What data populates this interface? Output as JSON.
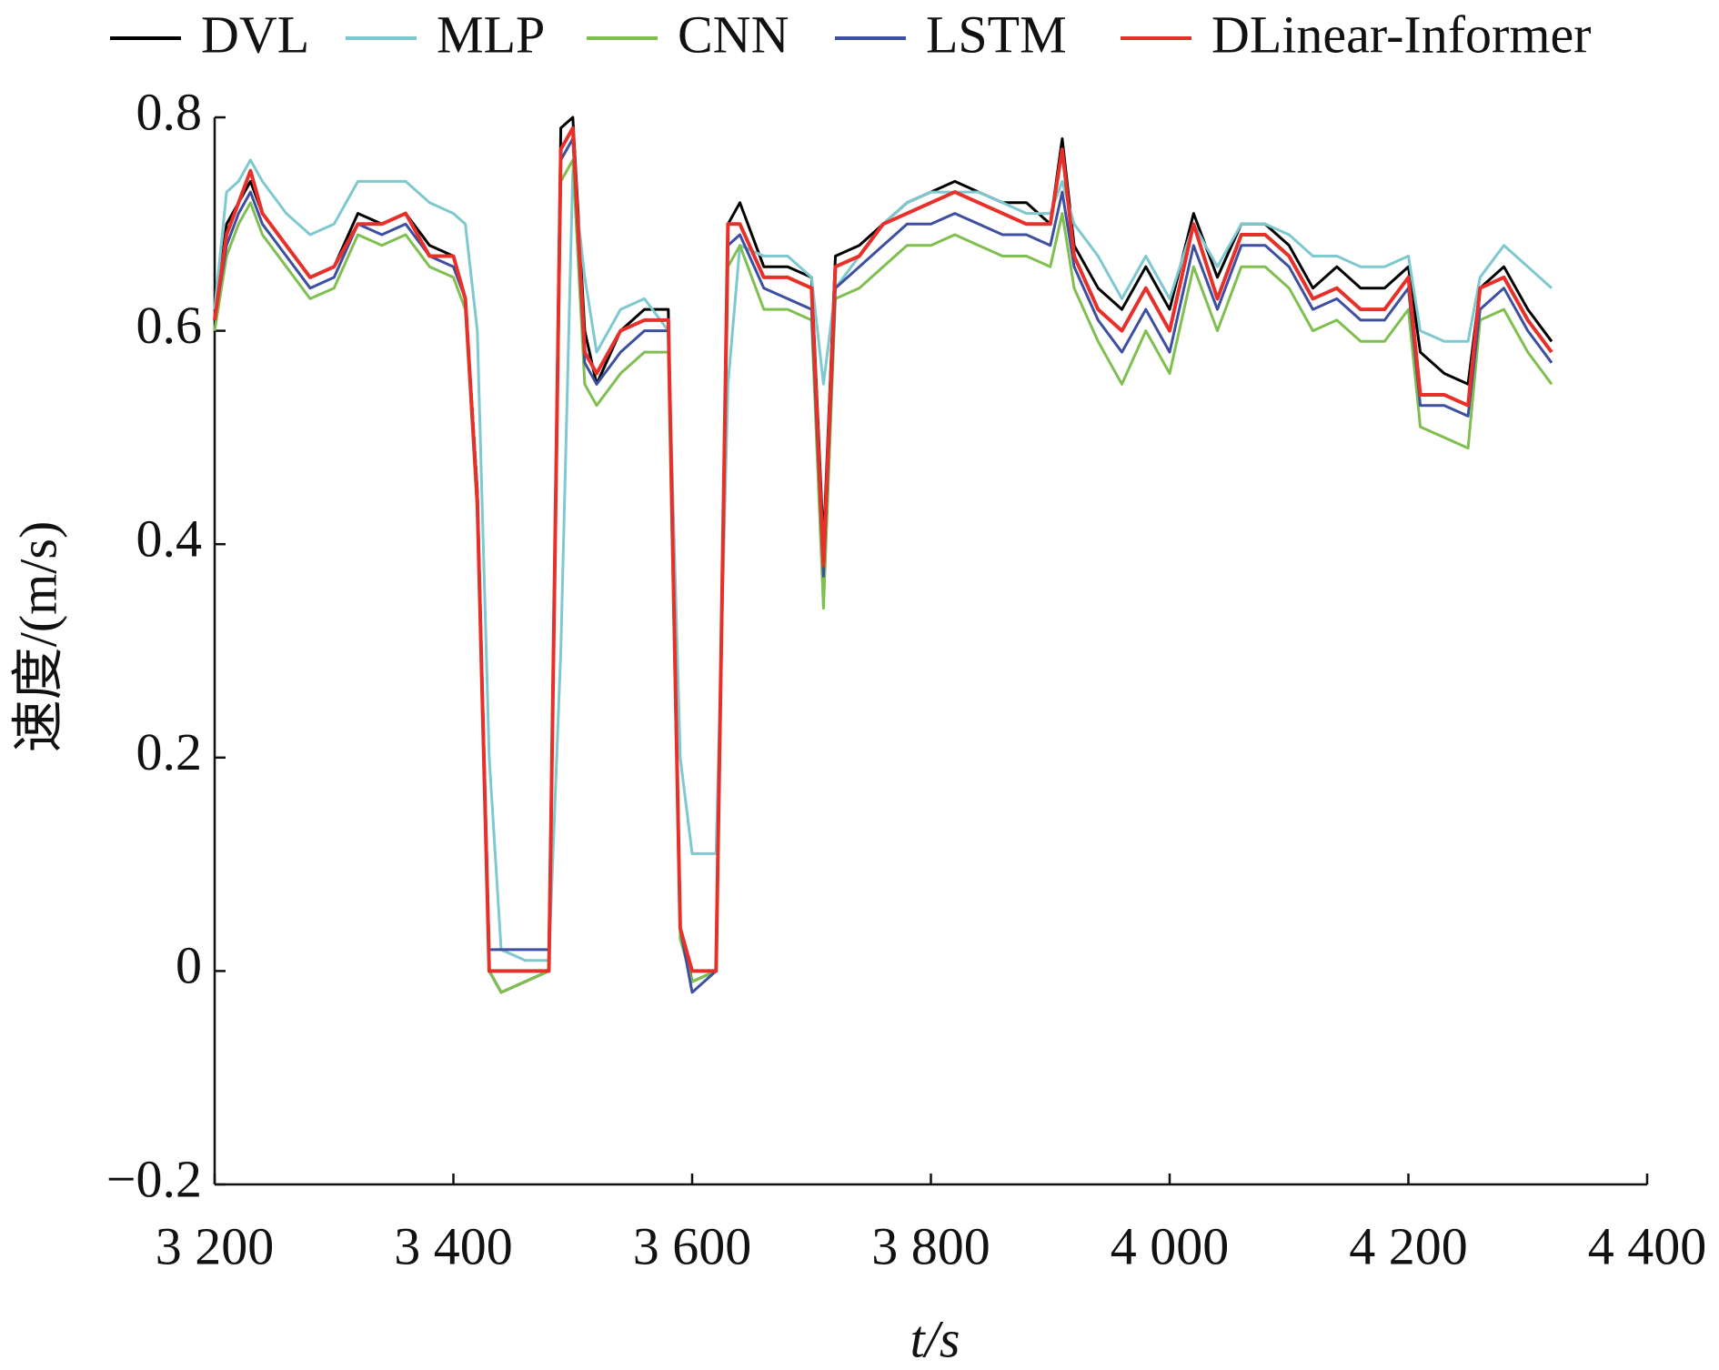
{
  "chart_data": {
    "type": "line",
    "xlabel": "t/s",
    "ylabel": "速度/(m/s)",
    "x": [
      3200,
      3210,
      3220,
      3230,
      3240,
      3260,
      3280,
      3300,
      3320,
      3340,
      3360,
      3380,
      3400,
      3410,
      3420,
      3430,
      3440,
      3460,
      3480,
      3490,
      3500,
      3510,
      3520,
      3540,
      3560,
      3580,
      3590,
      3600,
      3620,
      3630,
      3640,
      3660,
      3680,
      3700,
      3710,
      3720,
      3740,
      3760,
      3780,
      3800,
      3820,
      3840,
      3860,
      3880,
      3900,
      3910,
      3920,
      3940,
      3960,
      3980,
      4000,
      4020,
      4040,
      4060,
      4080,
      4100,
      4120,
      4140,
      4160,
      4180,
      4200,
      4210,
      4230,
      4250,
      4260,
      4280,
      4300,
      4320
    ],
    "series": [
      {
        "name": "DVL",
        "color": "#000000",
        "values": [
          0.61,
          0.7,
          0.72,
          0.74,
          0.71,
          0.68,
          0.65,
          0.66,
          0.71,
          0.7,
          0.71,
          0.68,
          0.67,
          0.63,
          0.45,
          0.0,
          -0.02,
          -0.01,
          0.0,
          0.79,
          0.8,
          0.6,
          0.55,
          0.6,
          0.62,
          0.62,
          0.04,
          -0.01,
          0.0,
          0.7,
          0.72,
          0.66,
          0.66,
          0.65,
          0.4,
          0.67,
          0.68,
          0.7,
          0.72,
          0.73,
          0.74,
          0.73,
          0.72,
          0.72,
          0.7,
          0.78,
          0.68,
          0.64,
          0.62,
          0.66,
          0.62,
          0.71,
          0.65,
          0.7,
          0.7,
          0.68,
          0.64,
          0.66,
          0.64,
          0.64,
          0.66,
          0.58,
          0.56,
          0.55,
          0.64,
          0.66,
          0.62,
          0.59
        ]
      },
      {
        "name": "MLP",
        "color": "#7ec8d0",
        "values": [
          0.62,
          0.73,
          0.74,
          0.76,
          0.74,
          0.71,
          0.69,
          0.7,
          0.74,
          0.74,
          0.74,
          0.72,
          0.71,
          0.7,
          0.6,
          0.2,
          0.02,
          0.01,
          0.01,
          0.3,
          0.75,
          0.65,
          0.58,
          0.62,
          0.63,
          0.6,
          0.2,
          0.11,
          0.11,
          0.55,
          0.68,
          0.67,
          0.67,
          0.65,
          0.55,
          0.64,
          0.67,
          0.7,
          0.72,
          0.73,
          0.73,
          0.73,
          0.72,
          0.71,
          0.71,
          0.74,
          0.7,
          0.67,
          0.63,
          0.67,
          0.63,
          0.7,
          0.66,
          0.7,
          0.7,
          0.69,
          0.67,
          0.67,
          0.66,
          0.66,
          0.67,
          0.6,
          0.59,
          0.59,
          0.65,
          0.68,
          0.66,
          0.64
        ]
      },
      {
        "name": "CNN",
        "color": "#7fbf4f",
        "values": [
          0.6,
          0.67,
          0.7,
          0.72,
          0.69,
          0.66,
          0.63,
          0.64,
          0.69,
          0.68,
          0.69,
          0.66,
          0.65,
          0.62,
          0.43,
          0.0,
          -0.02,
          -0.01,
          0.0,
          0.74,
          0.76,
          0.55,
          0.53,
          0.56,
          0.58,
          0.58,
          0.03,
          -0.01,
          0.0,
          0.66,
          0.68,
          0.62,
          0.62,
          0.61,
          0.34,
          0.63,
          0.64,
          0.66,
          0.68,
          0.68,
          0.69,
          0.68,
          0.67,
          0.67,
          0.66,
          0.71,
          0.64,
          0.59,
          0.55,
          0.6,
          0.56,
          0.66,
          0.6,
          0.66,
          0.66,
          0.64,
          0.6,
          0.61,
          0.59,
          0.59,
          0.62,
          0.51,
          0.5,
          0.49,
          0.61,
          0.62,
          0.58,
          0.55
        ]
      },
      {
        "name": "LSTM",
        "color": "#3c4fa0",
        "values": [
          0.61,
          0.68,
          0.71,
          0.73,
          0.7,
          0.67,
          0.64,
          0.65,
          0.7,
          0.69,
          0.7,
          0.67,
          0.66,
          0.63,
          0.45,
          0.02,
          0.02,
          0.02,
          0.02,
          0.76,
          0.78,
          0.57,
          0.55,
          0.58,
          0.6,
          0.6,
          0.04,
          -0.02,
          0.0,
          0.68,
          0.69,
          0.64,
          0.63,
          0.62,
          0.37,
          0.64,
          0.66,
          0.68,
          0.7,
          0.7,
          0.71,
          0.7,
          0.69,
          0.69,
          0.68,
          0.73,
          0.66,
          0.61,
          0.58,
          0.62,
          0.58,
          0.68,
          0.62,
          0.68,
          0.68,
          0.66,
          0.62,
          0.63,
          0.61,
          0.61,
          0.64,
          0.53,
          0.53,
          0.52,
          0.62,
          0.64,
          0.6,
          0.57
        ]
      },
      {
        "name": "DLinear-Informer",
        "color": "#e8302a",
        "values": [
          0.61,
          0.69,
          0.72,
          0.75,
          0.71,
          0.68,
          0.65,
          0.66,
          0.7,
          0.7,
          0.71,
          0.67,
          0.67,
          0.63,
          0.44,
          0.0,
          0.0,
          0.0,
          0.0,
          0.77,
          0.79,
          0.58,
          0.56,
          0.6,
          0.61,
          0.61,
          0.04,
          0.0,
          0.0,
          0.7,
          0.7,
          0.65,
          0.65,
          0.64,
          0.38,
          0.66,
          0.67,
          0.7,
          0.71,
          0.72,
          0.73,
          0.72,
          0.71,
          0.7,
          0.7,
          0.77,
          0.67,
          0.62,
          0.6,
          0.64,
          0.6,
          0.7,
          0.63,
          0.69,
          0.69,
          0.67,
          0.63,
          0.64,
          0.62,
          0.62,
          0.65,
          0.54,
          0.54,
          0.53,
          0.64,
          0.65,
          0.61,
          0.58
        ]
      }
    ],
    "xlim": [
      3200,
      4400
    ],
    "xticks": [
      {
        "value": 3200,
        "label": "3 200"
      },
      {
        "value": 3400,
        "label": "3 400"
      },
      {
        "value": 3600,
        "label": "3 600"
      },
      {
        "value": 3800,
        "label": "3 800"
      },
      {
        "value": 4000,
        "label": "4 000"
      },
      {
        "value": 4200,
        "label": "4 200"
      },
      {
        "value": 4400,
        "label": "4 400"
      }
    ],
    "ylim": [
      -0.2,
      0.8
    ],
    "yticks": [
      {
        "value": -0.2,
        "label": "−0.2"
      },
      0,
      0.2,
      0.4,
      0.6,
      0.8
    ],
    "grid": false,
    "legend": "top"
  }
}
